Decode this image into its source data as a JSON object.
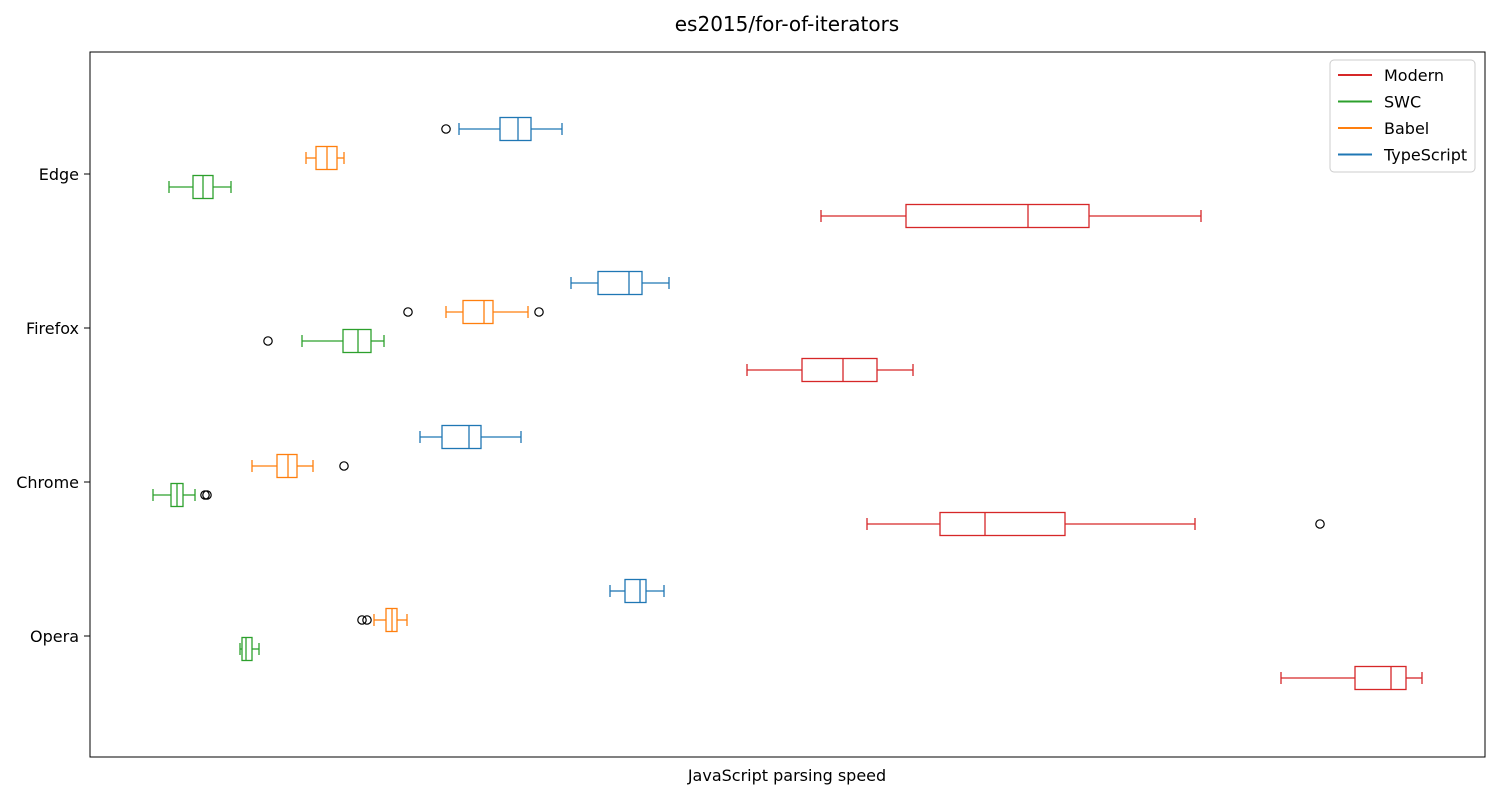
{
  "chart_data": {
    "type": "boxplot",
    "orientation": "horizontal",
    "title": "es2015/for-of-iterators",
    "xlabel": "JavaScript parsing speed",
    "ylabel": "",
    "x_ticks_shown": false,
    "grid": false,
    "legend_position": "top-right",
    "categories": [
      "Edge",
      "Firefox",
      "Chrome",
      "Opera"
    ],
    "series": [
      {
        "name": "TypeScript",
        "color": "#1f77b4",
        "boxes": [
          {
            "category": "Edge",
            "whisker_low": 459,
            "q1": 500,
            "median": 518,
            "q3": 531,
            "whisker_high": 562,
            "outliers": [
              446
            ]
          },
          {
            "category": "Firefox",
            "whisker_low": 571,
            "q1": 598,
            "median": 629,
            "q3": 642,
            "whisker_high": 669,
            "outliers": []
          },
          {
            "category": "Chrome",
            "whisker_low": 420,
            "q1": 442,
            "median": 469,
            "q3": 481,
            "whisker_high": 521,
            "outliers": []
          },
          {
            "category": "Opera",
            "whisker_low": 610,
            "q1": 625,
            "median": 640,
            "q3": 646,
            "whisker_high": 664,
            "outliers": []
          }
        ]
      },
      {
        "name": "Babel",
        "color": "#ff7f0e",
        "boxes": [
          {
            "category": "Edge",
            "whisker_low": 306,
            "q1": 316,
            "median": 327,
            "q3": 337,
            "whisker_high": 344,
            "outliers": []
          },
          {
            "category": "Firefox",
            "whisker_low": 446,
            "q1": 463,
            "median": 484,
            "q3": 493,
            "whisker_high": 528,
            "outliers": [
              408,
              539
            ]
          },
          {
            "category": "Chrome",
            "whisker_low": 252,
            "q1": 277,
            "median": 288,
            "q3": 297,
            "whisker_high": 313,
            "outliers": [
              344
            ]
          },
          {
            "category": "Opera",
            "whisker_low": 374,
            "q1": 386,
            "median": 392,
            "q3": 397,
            "whisker_high": 407,
            "outliers": [
              362,
              367
            ]
          }
        ]
      },
      {
        "name": "SWC",
        "color": "#2ca02c",
        "boxes": [
          {
            "category": "Edge",
            "whisker_low": 169,
            "q1": 193,
            "median": 203,
            "q3": 213,
            "whisker_high": 231,
            "outliers": []
          },
          {
            "category": "Firefox",
            "whisker_low": 302,
            "q1": 343,
            "median": 358,
            "q3": 371,
            "whisker_high": 384,
            "outliers": [
              268
            ]
          },
          {
            "category": "Chrome",
            "whisker_low": 153,
            "q1": 171,
            "median": 177,
            "q3": 183,
            "whisker_high": 195,
            "outliers": [
              205,
              207
            ]
          },
          {
            "category": "Opera",
            "whisker_low": 240,
            "q1": 242,
            "median": 246,
            "q3": 252,
            "whisker_high": 259,
            "outliers": []
          }
        ]
      },
      {
        "name": "Modern",
        "color": "#d62728",
        "boxes": [
          {
            "category": "Edge",
            "whisker_low": 821,
            "q1": 906,
            "median": 1028,
            "q3": 1089,
            "whisker_high": 1201,
            "outliers": []
          },
          {
            "category": "Firefox",
            "whisker_low": 747,
            "q1": 802,
            "median": 843,
            "q3": 877,
            "whisker_high": 913,
            "outliers": []
          },
          {
            "category": "Chrome",
            "whisker_low": 867,
            "q1": 940,
            "median": 985,
            "q3": 1065,
            "whisker_high": 1195,
            "outliers": [
              1320
            ]
          },
          {
            "category": "Opera",
            "whisker_low": 1281,
            "q1": 1355,
            "median": 1391,
            "q3": 1406,
            "whisker_high": 1422,
            "outliers": []
          }
        ]
      }
    ],
    "legend_order": [
      "Modern",
      "SWC",
      "Babel",
      "TypeScript"
    ]
  }
}
